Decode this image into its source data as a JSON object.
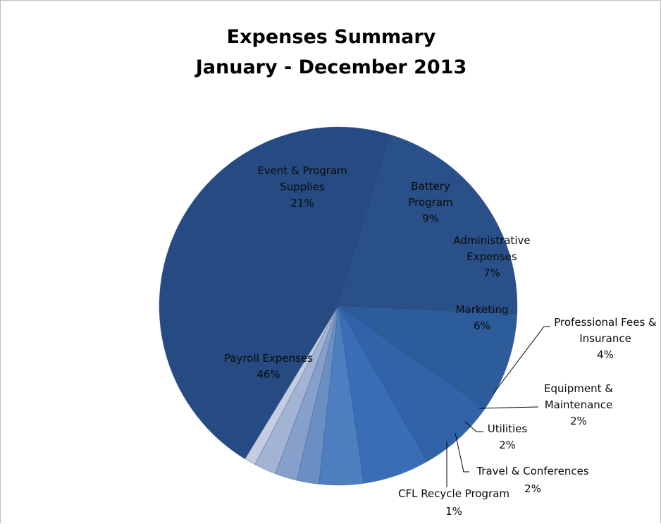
{
  "chart_data": {
    "type": "pie",
    "title": "Expenses Summary",
    "subtitle": "January - December 2013",
    "slices": [
      {
        "name": "Payroll Expenses",
        "value": 46,
        "percent_label": "46%",
        "color": "#264b82"
      },
      {
        "name": "Event & Program Supplies",
        "value": 21,
        "percent_label": "21%",
        "color": "#2a5089"
      },
      {
        "name": "Battery Program",
        "value": 9,
        "percent_label": "9%",
        "color": "#2d5c9b"
      },
      {
        "name": "Administrative Expenses",
        "value": 7,
        "percent_label": "7%",
        "color": "#3163a9"
      },
      {
        "name": "Marketing",
        "value": 6,
        "percent_label": "6%",
        "color": "#396db5"
      },
      {
        "name": "Professional Fees & Insurance",
        "value": 4,
        "percent_label": "4%",
        "color": "#4d7ebf"
      },
      {
        "name": "Equipment & Maintenance",
        "value": 2,
        "percent_label": "2%",
        "color": "#6c8fc3"
      },
      {
        "name": "Utilities",
        "value": 2,
        "percent_label": "2%",
        "color": "#879fcb"
      },
      {
        "name": "Travel & Conferences",
        "value": 2,
        "percent_label": "2%",
        "color": "#a2b3d4"
      },
      {
        "name": "CFL Recycle Program",
        "value": 1,
        "percent_label": "1%",
        "color": "#c4cde0"
      }
    ],
    "legend": "none",
    "labels": {
      "payroll": [
        "Payroll Expenses",
        "46%"
      ],
      "event": [
        "Event & Program",
        "Supplies",
        "21%"
      ],
      "battery": [
        "Battery",
        "Program",
        "9%"
      ],
      "admin": [
        "Administrative",
        "Expenses",
        "7%"
      ],
      "marketing": [
        "Marketing",
        "6%"
      ],
      "professional": [
        "Professional Fees &",
        "Insurance",
        "4%"
      ],
      "equipment": [
        "Equipment &",
        "Maintenance",
        "2%"
      ],
      "utilities": [
        "Utilities",
        "2%"
      ],
      "travel": [
        "Travel & Conferences",
        "2%"
      ],
      "cfl": [
        "CFL Recycle Program",
        "1%"
      ]
    }
  }
}
